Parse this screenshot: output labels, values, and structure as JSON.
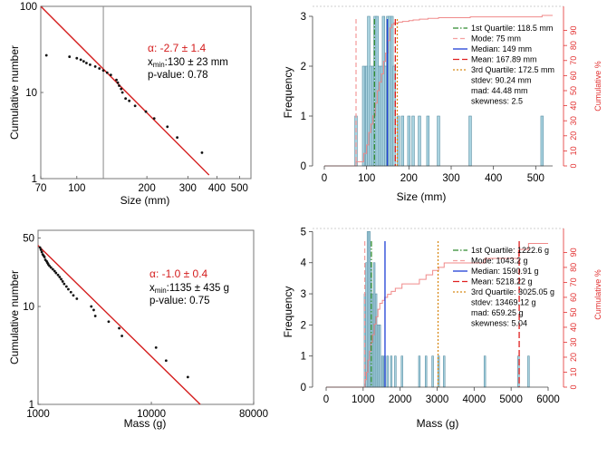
{
  "chart_data": [
    {
      "id": "size_powerlaw",
      "type": "scatter",
      "log_x": true,
      "log_y": true,
      "xlabel": "Size (mm)",
      "ylabel": "Cumulative number",
      "xlim": [
        70,
        560
      ],
      "ylim": [
        1,
        100
      ],
      "x_ticks": [
        70,
        100,
        200,
        300,
        400,
        500
      ],
      "y_ticks": [
        1,
        10,
        100
      ],
      "xmin_line": 130,
      "fit_line": [
        [
          70,
          100
        ],
        [
          370,
          1.1
        ]
      ],
      "annotation": {
        "alpha": "α: -2.7 ± 1.4",
        "xmin_prefix": "x",
        "xmin_sub": "min",
        "xmin_value": ":130 ± 23 mm",
        "pvalue": "p-value: 0.78"
      },
      "points": [
        [
          74,
          27
        ],
        [
          93,
          26
        ],
        [
          100,
          25
        ],
        [
          104,
          24
        ],
        [
          107,
          23
        ],
        [
          110,
          22
        ],
        [
          114,
          21
        ],
        [
          120,
          20
        ],
        [
          125,
          19
        ],
        [
          130,
          18
        ],
        [
          135,
          17
        ],
        [
          140,
          16
        ],
        [
          148,
          14
        ],
        [
          150,
          13
        ],
        [
          152,
          12
        ],
        [
          155,
          11
        ],
        [
          157,
          10
        ],
        [
          162,
          8.5
        ],
        [
          168,
          8
        ],
        [
          178,
          7
        ],
        [
          198,
          6
        ],
        [
          215,
          5
        ],
        [
          245,
          4
        ],
        [
          270,
          3
        ],
        [
          345,
          2
        ]
      ]
    },
    {
      "id": "size_histogram",
      "type": "bar",
      "xlabel": "Size (mm)",
      "ylabel": "Frequency",
      "y2label": "Cumulative %",
      "xlim": [
        0,
        540
      ],
      "ylim": [
        0,
        3.2
      ],
      "y2lim": [
        0,
        100
      ],
      "x_ticks": [
        0,
        100,
        200,
        300,
        400,
        500
      ],
      "y_ticks": [
        0,
        1,
        2,
        3
      ],
      "y2_ticks": [
        0,
        10,
        20,
        30,
        40,
        50,
        60,
        70,
        80,
        90
      ],
      "bin_width": 6,
      "bars": [
        [
          75,
          1
        ],
        [
          93,
          2
        ],
        [
          100,
          2
        ],
        [
          105,
          3
        ],
        [
          110,
          2
        ],
        [
          115,
          2
        ],
        [
          120,
          3
        ],
        [
          125,
          3
        ],
        [
          130,
          2
        ],
        [
          135,
          2
        ],
        [
          140,
          3
        ],
        [
          145,
          2
        ],
        [
          150,
          3
        ],
        [
          155,
          3
        ],
        [
          160,
          3
        ],
        [
          165,
          2
        ],
        [
          175,
          1
        ],
        [
          185,
          1
        ],
        [
          200,
          1
        ],
        [
          210,
          1
        ],
        [
          225,
          1
        ],
        [
          245,
          1
        ],
        [
          270,
          1
        ],
        [
          345,
          1
        ],
        [
          515,
          1
        ]
      ],
      "cumulative": [
        [
          75,
          2.8
        ],
        [
          93,
          8.3
        ],
        [
          100,
          13.9
        ],
        [
          105,
          22.2
        ],
        [
          110,
          27.8
        ],
        [
          115,
          33.3
        ],
        [
          120,
          41.7
        ],
        [
          125,
          50
        ],
        [
          130,
          55.6
        ],
        [
          135,
          61.1
        ],
        [
          140,
          69.4
        ],
        [
          145,
          75
        ],
        [
          150,
          83.3
        ],
        [
          155,
          91.7
        ],
        [
          160,
          94
        ],
        [
          165,
          95
        ],
        [
          175,
          95.5
        ],
        [
          185,
          96
        ],
        [
          200,
          96.5
        ],
        [
          210,
          97
        ],
        [
          225,
          97.5
        ],
        [
          245,
          98
        ],
        [
          270,
          98.5
        ],
        [
          345,
          99
        ],
        [
          515,
          100
        ],
        [
          540,
          100
        ]
      ],
      "stat_lines": [
        {
          "value": 118.5,
          "label": "1st Quartile: 118.5 mm",
          "color": "#2e8b2e",
          "dash": "6,2,1.5,2"
        },
        {
          "value": 75,
          "label": "Mode: 75 mm",
          "color": "#f4a0a0",
          "dash": "5,3"
        },
        {
          "value": 149,
          "label": "Median: 149 mm",
          "color": "#1f3fd6",
          "dash": ""
        },
        {
          "value": 167.89,
          "label": "Mean: 167.89 mm",
          "color": "#e02020",
          "dash": "7,3"
        },
        {
          "value": 172.5,
          "label": "3rd Quartile: 172.5 mm",
          "color": "#d88a18",
          "dash": "2,2"
        }
      ],
      "stats_text": [
        "stdev: 90.24 mm",
        "mad: 44.48 mm",
        "skewness: 2.5"
      ]
    },
    {
      "id": "mass_powerlaw",
      "type": "scatter",
      "log_x": true,
      "log_y": true,
      "xlabel": "Mass (g)",
      "ylabel": "Cumulative number",
      "xlim": [
        1000,
        80000
      ],
      "ylim": [
        1,
        60
      ],
      "x_ticks": [
        1000,
        10000,
        80000
      ],
      "y_ticks": [
        1,
        10,
        50
      ],
      "fit_line": [
        [
          1000,
          42
        ],
        [
          27000,
          1
        ]
      ],
      "annotation": {
        "alpha": "α: -1.0 ± 0.4",
        "xmin_prefix": "x",
        "xmin_sub": "min",
        "xmin_value": ":1135 ± 435 g",
        "pvalue": "p-value: 0.75"
      },
      "points": [
        [
          1040,
          40
        ],
        [
          1060,
          38
        ],
        [
          1080,
          36
        ],
        [
          1100,
          34
        ],
        [
          1120,
          33
        ],
        [
          1140,
          32
        ],
        [
          1160,
          30
        ],
        [
          1190,
          29
        ],
        [
          1210,
          28
        ],
        [
          1230,
          27
        ],
        [
          1260,
          26
        ],
        [
          1300,
          25
        ],
        [
          1350,
          24
        ],
        [
          1400,
          23
        ],
        [
          1440,
          22
        ],
        [
          1500,
          21
        ],
        [
          1550,
          20
        ],
        [
          1600,
          19
        ],
        [
          1650,
          18
        ],
        [
          1700,
          17
        ],
        [
          1780,
          16
        ],
        [
          1850,
          15
        ],
        [
          1950,
          14
        ],
        [
          2050,
          13
        ],
        [
          2200,
          12
        ],
        [
          2950,
          10
        ],
        [
          3100,
          9.2
        ],
        [
          3200,
          8
        ],
        [
          4200,
          7
        ],
        [
          5200,
          6
        ],
        [
          5500,
          5
        ],
        [
          11000,
          3.8
        ],
        [
          13500,
          2.8
        ],
        [
          21000,
          1.9
        ]
      ]
    },
    {
      "id": "mass_histogram",
      "type": "bar",
      "xlabel": "Mass (g)",
      "ylabel": "Frequency",
      "y2label": "Cumulative %",
      "xlim": [
        0,
        6000
      ],
      "ylim": [
        0,
        5.1
      ],
      "y2lim": [
        0,
        100
      ],
      "x_ticks": [
        0,
        1000,
        2000,
        3000,
        4000,
        5000,
        6000
      ],
      "y_ticks": [
        0,
        1,
        2,
        3,
        4,
        5
      ],
      "y2_ticks": [
        0,
        10,
        20,
        30,
        40,
        50,
        60,
        70,
        80,
        90
      ],
      "bin_width": 45,
      "bars": [
        [
          1050,
          3
        ],
        [
          1090,
          4
        ],
        [
          1130,
          5
        ],
        [
          1170,
          5
        ],
        [
          1210,
          4
        ],
        [
          1250,
          3
        ],
        [
          1300,
          4
        ],
        [
          1350,
          3
        ],
        [
          1400,
          2
        ],
        [
          1450,
          2
        ],
        [
          1520,
          1
        ],
        [
          1580,
          1
        ],
        [
          1660,
          1
        ],
        [
          1760,
          1
        ],
        [
          1870,
          1
        ],
        [
          2050,
          1
        ],
        [
          2520,
          1
        ],
        [
          2700,
          1
        ],
        [
          2880,
          1
        ],
        [
          3040,
          1
        ],
        [
          3190,
          1
        ],
        [
          4290,
          1
        ],
        [
          5200,
          1
        ],
        [
          5470,
          1
        ]
      ],
      "cumulative": [
        [
          1050,
          5
        ],
        [
          1090,
          10
        ],
        [
          1130,
          18
        ],
        [
          1170,
          24
        ],
        [
          1210,
          30
        ],
        [
          1250,
          35
        ],
        [
          1300,
          42
        ],
        [
          1350,
          47
        ],
        [
          1400,
          52
        ],
        [
          1450,
          56
        ],
        [
          1520,
          58
        ],
        [
          1580,
          60
        ],
        [
          1660,
          62
        ],
        [
          1760,
          64
        ],
        [
          1870,
          66
        ],
        [
          2050,
          69
        ],
        [
          2520,
          72
        ],
        [
          2700,
          75
        ],
        [
          2880,
          78
        ],
        [
          3040,
          80
        ],
        [
          3190,
          83
        ],
        [
          4290,
          86
        ],
        [
          5200,
          92
        ],
        [
          5470,
          96
        ],
        [
          6000,
          96
        ]
      ],
      "stat_lines": [
        {
          "value": 1222.6,
          "label": "1st Quartile: 1222.6 g",
          "color": "#2e8b2e",
          "dash": "6,2,1.5,2"
        },
        {
          "value": 1043.2,
          "label": "Mode: 1043.2 g",
          "color": "#f4a0a0",
          "dash": "5,3"
        },
        {
          "value": 1590.91,
          "label": "Median: 1590.91 g",
          "color": "#1f3fd6",
          "dash": ""
        },
        {
          "value": 5218.22,
          "label": "Mean: 5218.22 g",
          "color": "#e02020",
          "dash": "7,3"
        },
        {
          "value": 3025.05,
          "label": "3rd Quartile: 3025.05 g",
          "color": "#d88a18",
          "dash": "2,2"
        }
      ],
      "stats_text": [
        "stdev: 13469.12 g",
        "mad: 659.25 g",
        "skewness: 5.04"
      ]
    }
  ],
  "colors": {
    "fit": "#d41c1c",
    "points": "#111111",
    "bar_fill": "#a9d3e0",
    "bar_stroke": "#5a8fa3",
    "cumulative": "#f08a8a",
    "right_axis": "#e23030",
    "frame": "#777777"
  }
}
